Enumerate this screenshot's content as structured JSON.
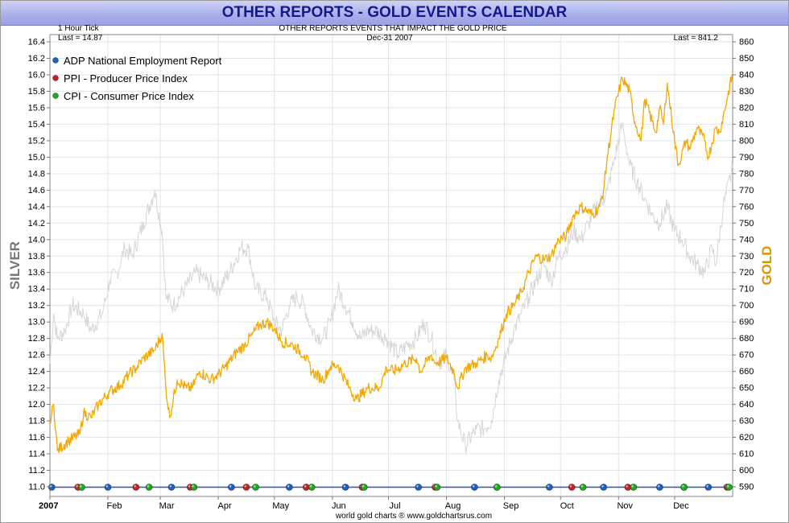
{
  "title": "OTHER REPORTS - GOLD EVENTS CALENDAR",
  "subtitle": "OTHER REPORTS EVENTS THAT IMPACT THE GOLD PRICE",
  "tick_label": "1 Hour Tick",
  "date_label": "Dec-31  2007",
  "last_left": "Last = 14.87",
  "last_right": "Last = 841.2",
  "footer": "world gold charts ® www.goldchartsrus.com",
  "colors": {
    "gold": "#f5a800",
    "silver": "#d6d6d6",
    "adp": "#1f5fbf",
    "ppi": "#c62020",
    "cpi": "#21a821",
    "baseline": "#3355aa"
  },
  "chart_data": {
    "type": "line",
    "title": "OTHER REPORTS - GOLD EVENTS CALENDAR",
    "subtitle": "OTHER REPORTS EVENTS THAT IMPACT THE GOLD PRICE",
    "ylabel_left": "SILVER",
    "ylabel_right": "GOLD",
    "ylim_left": [
      11.0,
      16.4
    ],
    "ylim_right": [
      590,
      860
    ],
    "yticks_left": [
      "11.0",
      "11.2",
      "11.4",
      "11.6",
      "11.8",
      "12.0",
      "12.2",
      "12.4",
      "12.6",
      "12.8",
      "13.0",
      "13.2",
      "13.4",
      "13.6",
      "13.8",
      "14.0",
      "14.2",
      "14.4",
      "14.6",
      "14.8",
      "15.0",
      "15.2",
      "15.4",
      "15.6",
      "15.8",
      "16.0",
      "16.2",
      "16.4"
    ],
    "yticks_right": [
      "590",
      "600",
      "610",
      "620",
      "630",
      "640",
      "650",
      "660",
      "670",
      "680",
      "690",
      "700",
      "710",
      "720",
      "730",
      "740",
      "750",
      "760",
      "770",
      "780",
      "790",
      "800",
      "810",
      "820",
      "830",
      "840",
      "850",
      "860"
    ],
    "xlim_days": [
      0,
      365
    ],
    "x_ticks": [
      {
        "label": "2007",
        "day": 0
      },
      {
        "label": "Feb",
        "day": 31
      },
      {
        "label": "Mar",
        "day": 59
      },
      {
        "label": "Apr",
        "day": 90
      },
      {
        "label": "May",
        "day": 120
      },
      {
        "label": "Jun",
        "day": 151
      },
      {
        "label": "Jul",
        "day": 181
      },
      {
        "label": "Aug",
        "day": 212
      },
      {
        "label": "Sep",
        "day": 243
      },
      {
        "label": "Oct",
        "day": 273
      },
      {
        "label": "Nov",
        "day": 304
      },
      {
        "label": "Dec",
        "day": 334
      }
    ],
    "grid": true,
    "legend_position": "top-left",
    "series": [
      {
        "name": "Gold",
        "axis": "right",
        "points": [
          [
            0,
            630
          ],
          [
            2,
            640
          ],
          [
            4,
            612
          ],
          [
            10,
            618
          ],
          [
            16,
            622
          ],
          [
            18,
            635
          ],
          [
            22,
            632
          ],
          [
            26,
            640
          ],
          [
            32,
            648
          ],
          [
            38,
            652
          ],
          [
            42,
            658
          ],
          [
            46,
            662
          ],
          [
            50,
            668
          ],
          [
            56,
            673
          ],
          [
            60,
            683
          ],
          [
            62,
            650
          ],
          [
            64,
            632
          ],
          [
            68,
            655
          ],
          [
            73,
            650
          ],
          [
            76,
            650
          ],
          [
            80,
            660
          ],
          [
            86,
            655
          ],
          [
            90,
            658
          ],
          [
            94,
            663
          ],
          [
            100,
            672
          ],
          [
            104,
            676
          ],
          [
            108,
            682
          ],
          [
            112,
            688
          ],
          [
            116,
            690
          ],
          [
            120,
            686
          ],
          [
            124,
            678
          ],
          [
            130,
            676
          ],
          [
            136,
            670
          ],
          [
            140,
            660
          ],
          [
            146,
            655
          ],
          [
            150,
            663
          ],
          [
            154,
            664
          ],
          [
            160,
            650
          ],
          [
            164,
            643
          ],
          [
            170,
            650
          ],
          [
            176,
            650
          ],
          [
            180,
            662
          ],
          [
            184,
            660
          ],
          [
            190,
            665
          ],
          [
            196,
            668
          ],
          [
            198,
            660
          ],
          [
            204,
            670
          ],
          [
            206,
            665
          ],
          [
            212,
            668
          ],
          [
            216,
            660
          ],
          [
            218,
            650
          ],
          [
            222,
            662
          ],
          [
            228,
            665
          ],
          [
            234,
            670
          ],
          [
            236,
            668
          ],
          [
            240,
            680
          ],
          [
            244,
            695
          ],
          [
            248,
            700
          ],
          [
            252,
            708
          ],
          [
            256,
            720
          ],
          [
            260,
            730
          ],
          [
            264,
            728
          ],
          [
            268,
            730
          ],
          [
            272,
            740
          ],
          [
            276,
            742
          ],
          [
            280,
            755
          ],
          [
            284,
            760
          ],
          [
            290,
            755
          ],
          [
            294,
            760
          ],
          [
            296,
            770
          ],
          [
            298,
            790
          ],
          [
            302,
            820
          ],
          [
            306,
            838
          ],
          [
            310,
            830
          ],
          [
            312,
            815
          ],
          [
            316,
            800
          ],
          [
            318,
            825
          ],
          [
            324,
            805
          ],
          [
            326,
            820
          ],
          [
            328,
            810
          ],
          [
            330,
            835
          ],
          [
            334,
            800
          ],
          [
            336,
            785
          ],
          [
            340,
            800
          ],
          [
            342,
            795
          ],
          [
            346,
            808
          ],
          [
            350,
            800
          ],
          [
            352,
            790
          ],
          [
            356,
            808
          ],
          [
            358,
            805
          ],
          [
            362,
            825
          ],
          [
            365,
            841.2
          ]
        ]
      },
      {
        "name": "Silver",
        "axis": "left",
        "points": [
          [
            0,
            12.5
          ],
          [
            2,
            13.1
          ],
          [
            4,
            12.8
          ],
          [
            8,
            12.9
          ],
          [
            12,
            13.2
          ],
          [
            18,
            13.1
          ],
          [
            22,
            12.9
          ],
          [
            28,
            13.1
          ],
          [
            32,
            13.5
          ],
          [
            36,
            13.6
          ],
          [
            40,
            13.9
          ],
          [
            44,
            13.8
          ],
          [
            50,
            14.2
          ],
          [
            56,
            14.6
          ],
          [
            60,
            14.1
          ],
          [
            62,
            13.3
          ],
          [
            66,
            13.2
          ],
          [
            72,
            13.4
          ],
          [
            78,
            13.6
          ],
          [
            84,
            13.5
          ],
          [
            90,
            13.4
          ],
          [
            96,
            13.6
          ],
          [
            102,
            13.9
          ],
          [
            106,
            13.9
          ],
          [
            110,
            13.4
          ],
          [
            116,
            13.3
          ],
          [
            120,
            13.0
          ],
          [
            124,
            12.9
          ],
          [
            128,
            13.2
          ],
          [
            132,
            13.3
          ],
          [
            136,
            13.2
          ],
          [
            140,
            12.9
          ],
          [
            146,
            12.8
          ],
          [
            150,
            13.0
          ],
          [
            154,
            13.4
          ],
          [
            158,
            13.2
          ],
          [
            162,
            13.0
          ],
          [
            166,
            12.8
          ],
          [
            170,
            12.9
          ],
          [
            174,
            12.9
          ],
          [
            180,
            12.8
          ],
          [
            186,
            12.6
          ],
          [
            190,
            12.7
          ],
          [
            196,
            12.8
          ],
          [
            200,
            13.0
          ],
          [
            204,
            12.8
          ],
          [
            208,
            12.5
          ],
          [
            212,
            12.6
          ],
          [
            216,
            12.3
          ],
          [
            218,
            11.8
          ],
          [
            222,
            11.5
          ],
          [
            228,
            11.7
          ],
          [
            232,
            11.7
          ],
          [
            236,
            11.8
          ],
          [
            240,
            12.3
          ],
          [
            244,
            12.6
          ],
          [
            248,
            12.9
          ],
          [
            252,
            13.1
          ],
          [
            256,
            13.3
          ],
          [
            260,
            13.5
          ],
          [
            264,
            13.7
          ],
          [
            268,
            13.5
          ],
          [
            272,
            13.8
          ],
          [
            276,
            13.9
          ],
          [
            280,
            14.1
          ],
          [
            284,
            14.0
          ],
          [
            288,
            14.2
          ],
          [
            292,
            14.4
          ],
          [
            296,
            14.5
          ],
          [
            298,
            14.6
          ],
          [
            302,
            15.0
          ],
          [
            306,
            15.4
          ],
          [
            310,
            14.9
          ],
          [
            314,
            14.7
          ],
          [
            318,
            14.5
          ],
          [
            322,
            14.3
          ],
          [
            326,
            14.2
          ],
          [
            330,
            14.4
          ],
          [
            334,
            14.1
          ],
          [
            338,
            14.0
          ],
          [
            342,
            13.8
          ],
          [
            346,
            13.7
          ],
          [
            350,
            13.6
          ],
          [
            354,
            13.9
          ],
          [
            356,
            13.7
          ],
          [
            360,
            14.4
          ],
          [
            365,
            14.87
          ]
        ]
      }
    ],
    "events": [
      {
        "name": "ADP National Employment Report",
        "color": "adp",
        "days": [
          1,
          31,
          65,
          97,
          128,
          158,
          197,
          227,
          267,
          296,
          326,
          352
        ]
      },
      {
        "name": "PPI - Producer Price Index",
        "color": "ppi",
        "days": [
          15,
          46,
          75,
          105,
          137,
          167,
          206,
          239,
          279,
          309,
          339,
          362
        ]
      },
      {
        "name": "CPI - Consumer Price Index",
        "color": "cpi",
        "days": [
          17,
          53,
          77,
          110,
          140,
          168,
          207,
          239,
          285,
          312,
          339,
          363
        ]
      }
    ]
  }
}
